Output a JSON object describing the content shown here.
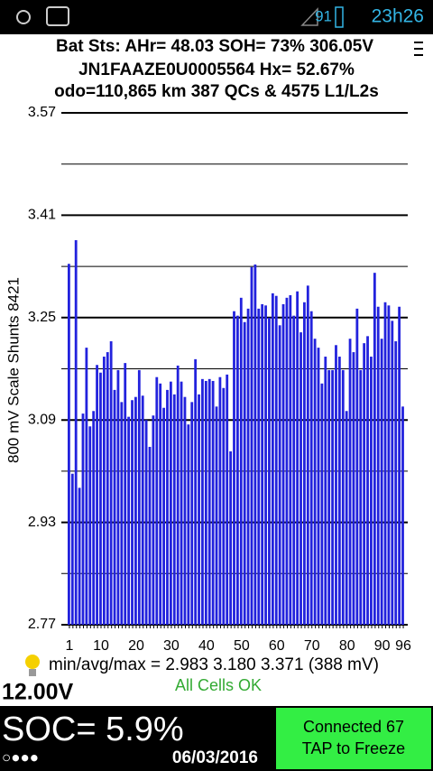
{
  "status_bar": {
    "battery": "91",
    "time": "23h26"
  },
  "header": {
    "lines": [
      "Bat Sts: AHr= 48.03 SOH= 73% 306.05V",
      "JN1FAAZE0U0005564   Hx= 52.67%",
      "odo=110,865 km 387 QCs & 4575 L1/L2s"
    ]
  },
  "chart_data": {
    "type": "bar",
    "y_label": "800 mV Scale   Shunts 8421",
    "categories": [
      1,
      null,
      null,
      null,
      null,
      null,
      null,
      null,
      null,
      10,
      null,
      null,
      null,
      null,
      null,
      null,
      null,
      null,
      null,
      20,
      null,
      null,
      null,
      null,
      null,
      null,
      null,
      null,
      null,
      30,
      null,
      null,
      null,
      null,
      null,
      null,
      null,
      null,
      null,
      40,
      null,
      null,
      null,
      null,
      null,
      null,
      null,
      null,
      null,
      50,
      null,
      null,
      null,
      null,
      null,
      null,
      null,
      null,
      null,
      60,
      null,
      null,
      null,
      null,
      null,
      null,
      null,
      null,
      null,
      70,
      null,
      null,
      null,
      null,
      null,
      null,
      null,
      null,
      null,
      80,
      null,
      null,
      null,
      null,
      null,
      null,
      null,
      null,
      null,
      90,
      null,
      null,
      null,
      null,
      null,
      96
    ],
    "values": [
      3.334,
      3.006,
      3.371,
      2.984,
      3.1,
      3.203,
      3.08,
      3.104,
      3.176,
      3.164,
      3.189,
      3.196,
      3.213,
      3.137,
      3.168,
      3.118,
      3.179,
      3.095,
      3.121,
      3.126,
      3.168,
      3.128,
      3.09,
      3.048,
      3.097,
      3.157,
      3.147,
      3.109,
      3.137,
      3.15,
      3.13,
      3.175,
      3.15,
      3.126,
      3.083,
      3.118,
      3.185,
      3.13,
      3.154,
      3.151,
      3.154,
      3.151,
      3.111,
      3.157,
      3.14,
      3.161,
      3.041,
      3.26,
      3.253,
      3.281,
      3.243,
      3.264,
      3.329,
      3.333,
      3.264,
      3.271,
      3.269,
      3.25,
      3.288,
      3.284,
      3.238,
      3.271,
      3.281,
      3.285,
      3.253,
      3.291,
      3.227,
      3.274,
      3.3,
      3.26,
      3.217,
      3.203,
      3.147,
      3.189,
      3.168,
      3.168,
      3.207,
      3.189,
      3.168,
      3.104,
      3.217,
      3.196,
      3.264,
      3.168,
      3.21,
      3.221,
      3.189,
      3.32,
      3.267,
      3.217,
      3.274,
      3.269,
      3.245,
      3.213,
      3.267,
      3.111
    ],
    "color": "#2222dd",
    "ylim": [
      2.77,
      3.57
    ],
    "yticks": [
      2.77,
      2.93,
      3.09,
      3.25,
      3.41,
      3.57
    ],
    "minor_yticks": [
      2.85,
      3.01,
      3.17,
      3.33,
      3.49
    ],
    "grid": true
  },
  "footer": {
    "stats": "min/avg/max = 2.983 3.180 3.371  (388 mV)",
    "status": "All Cells OK",
    "voltage": "12.00V",
    "soc": "SOC= 5.9%",
    "dots": "○●●●",
    "date": "06/03/2016",
    "button": [
      "Connected 67",
      "TAP to Freeze"
    ]
  }
}
